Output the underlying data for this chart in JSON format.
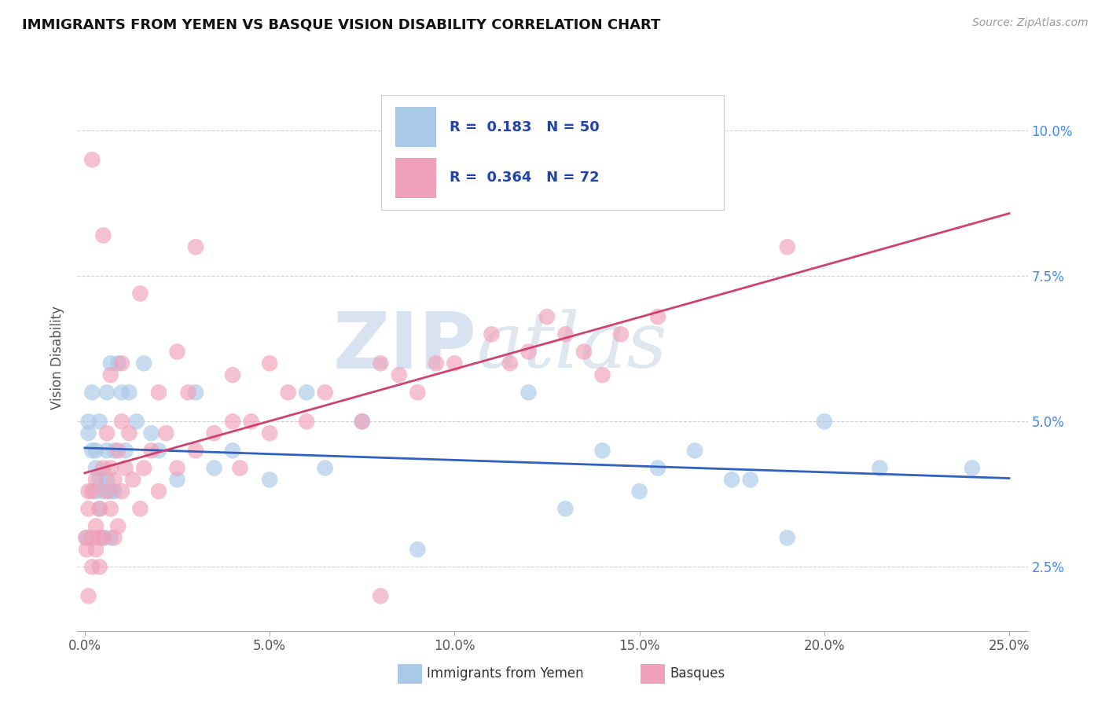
{
  "title": "IMMIGRANTS FROM YEMEN VS BASQUE VISION DISABILITY CORRELATION CHART",
  "source": "Source: ZipAtlas.com",
  "ylabel": "Vision Disability",
  "legend_label_blue": "Immigrants from Yemen",
  "legend_label_pink": "Basques",
  "R_blue": 0.183,
  "N_blue": 50,
  "R_pink": 0.364,
  "N_pink": 72,
  "xlim": [
    -0.002,
    0.255
  ],
  "ylim": [
    0.014,
    0.108
  ],
  "xticks": [
    0.0,
    0.05,
    0.1,
    0.15,
    0.2,
    0.25
  ],
  "xtick_labels": [
    "0.0%",
    "5.0%",
    "10.0%",
    "15.0%",
    "20.0%",
    "25.0%"
  ],
  "yticks": [
    0.025,
    0.05,
    0.075,
    0.1
  ],
  "ytick_labels": [
    "2.5%",
    "5.0%",
    "7.5%",
    "10.0%"
  ],
  "color_blue": "#A8C8E8",
  "color_pink": "#F0A0B8",
  "line_blue": "#3060C0",
  "line_pink": "#D04070",
  "watermark": "ZIPatlas",
  "watermark_color": "#C0D0E8",
  "blue_x": [
    0.0005,
    0.001,
    0.001,
    0.002,
    0.002,
    0.003,
    0.003,
    0.003,
    0.004,
    0.004,
    0.004,
    0.005,
    0.005,
    0.006,
    0.006,
    0.006,
    0.007,
    0.007,
    0.007,
    0.008,
    0.008,
    0.009,
    0.01,
    0.011,
    0.012,
    0.014,
    0.016,
    0.018,
    0.02,
    0.025,
    0.03,
    0.035,
    0.04,
    0.05,
    0.06,
    0.065,
    0.075,
    0.09,
    0.12,
    0.13,
    0.14,
    0.15,
    0.155,
    0.165,
    0.175,
    0.18,
    0.19,
    0.2,
    0.215,
    0.24
  ],
  "blue_y": [
    0.03,
    0.048,
    0.05,
    0.045,
    0.055,
    0.038,
    0.042,
    0.045,
    0.035,
    0.04,
    0.05,
    0.03,
    0.038,
    0.04,
    0.045,
    0.055,
    0.03,
    0.038,
    0.06,
    0.038,
    0.045,
    0.06,
    0.055,
    0.045,
    0.055,
    0.05,
    0.06,
    0.048,
    0.045,
    0.04,
    0.055,
    0.042,
    0.045,
    0.04,
    0.055,
    0.042,
    0.05,
    0.028,
    0.055,
    0.035,
    0.045,
    0.038,
    0.042,
    0.045,
    0.04,
    0.04,
    0.03,
    0.05,
    0.042,
    0.042
  ],
  "pink_x": [
    0.0003,
    0.0005,
    0.001,
    0.001,
    0.001,
    0.002,
    0.002,
    0.002,
    0.003,
    0.003,
    0.003,
    0.004,
    0.004,
    0.004,
    0.005,
    0.005,
    0.006,
    0.006,
    0.007,
    0.007,
    0.008,
    0.008,
    0.009,
    0.009,
    0.01,
    0.01,
    0.011,
    0.012,
    0.013,
    0.015,
    0.016,
    0.018,
    0.02,
    0.022,
    0.025,
    0.028,
    0.03,
    0.035,
    0.04,
    0.042,
    0.045,
    0.05,
    0.055,
    0.06,
    0.065,
    0.075,
    0.08,
    0.085,
    0.09,
    0.095,
    0.1,
    0.11,
    0.115,
    0.12,
    0.125,
    0.13,
    0.135,
    0.14,
    0.145,
    0.155,
    0.002,
    0.005,
    0.007,
    0.01,
    0.015,
    0.02,
    0.025,
    0.03,
    0.04,
    0.05,
    0.08,
    0.19
  ],
  "pink_y": [
    0.03,
    0.028,
    0.035,
    0.038,
    0.02,
    0.025,
    0.03,
    0.038,
    0.028,
    0.032,
    0.04,
    0.03,
    0.035,
    0.025,
    0.042,
    0.03,
    0.038,
    0.048,
    0.035,
    0.042,
    0.03,
    0.04,
    0.032,
    0.045,
    0.038,
    0.05,
    0.042,
    0.048,
    0.04,
    0.035,
    0.042,
    0.045,
    0.038,
    0.048,
    0.042,
    0.055,
    0.045,
    0.048,
    0.05,
    0.042,
    0.05,
    0.048,
    0.055,
    0.05,
    0.055,
    0.05,
    0.06,
    0.058,
    0.055,
    0.06,
    0.06,
    0.065,
    0.06,
    0.062,
    0.068,
    0.065,
    0.062,
    0.058,
    0.065,
    0.068,
    0.095,
    0.082,
    0.058,
    0.06,
    0.072,
    0.055,
    0.062,
    0.08,
    0.058,
    0.06,
    0.02,
    0.08
  ]
}
